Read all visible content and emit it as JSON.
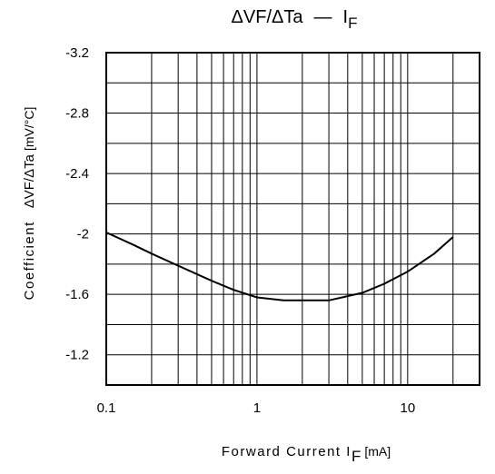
{
  "chart_data": {
    "type": "line",
    "title": {
      "main": "ΔVF/ΔTa",
      "separator": "—",
      "quantity": "I",
      "quantity_sub": "F"
    },
    "xlabel": {
      "main": "Forward Current I",
      "sub": "F",
      "unit": "[mA]"
    },
    "ylabel": {
      "prefix": "Coefficient",
      "main": "ΔVF/ΔTa",
      "unit": "[mV/°C]"
    },
    "x_scale": "log",
    "xlim": [
      0.1,
      30
    ],
    "ylim": [
      -1.0,
      -3.2
    ],
    "y_axis_inverted": true,
    "grid": true,
    "x_ticks": [
      {
        "value": 0.1,
        "label": "0.1"
      },
      {
        "value": 1,
        "label": "1"
      },
      {
        "value": 10,
        "label": "10"
      }
    ],
    "y_ticks": [
      {
        "value": -3.2,
        "label": "-3.2"
      },
      {
        "value": -2.8,
        "label": "-2.8"
      },
      {
        "value": -2.4,
        "label": "-2.4"
      },
      {
        "value": -2.0,
        "label": "-2"
      },
      {
        "value": -1.6,
        "label": "-1.6"
      },
      {
        "value": -1.2,
        "label": "-1.2"
      }
    ],
    "series": [
      {
        "x": [
          0.1,
          0.15,
          0.2,
          0.3,
          0.5,
          0.7,
          1.0,
          1.5,
          2.0,
          3.0,
          5.0,
          7.0,
          10,
          15,
          20
        ],
        "y": [
          -2.01,
          -1.93,
          -1.87,
          -1.79,
          -1.69,
          -1.63,
          -1.58,
          -1.56,
          -1.56,
          -1.56,
          -1.61,
          -1.67,
          -1.75,
          -1.87,
          -1.98
        ]
      }
    ]
  }
}
